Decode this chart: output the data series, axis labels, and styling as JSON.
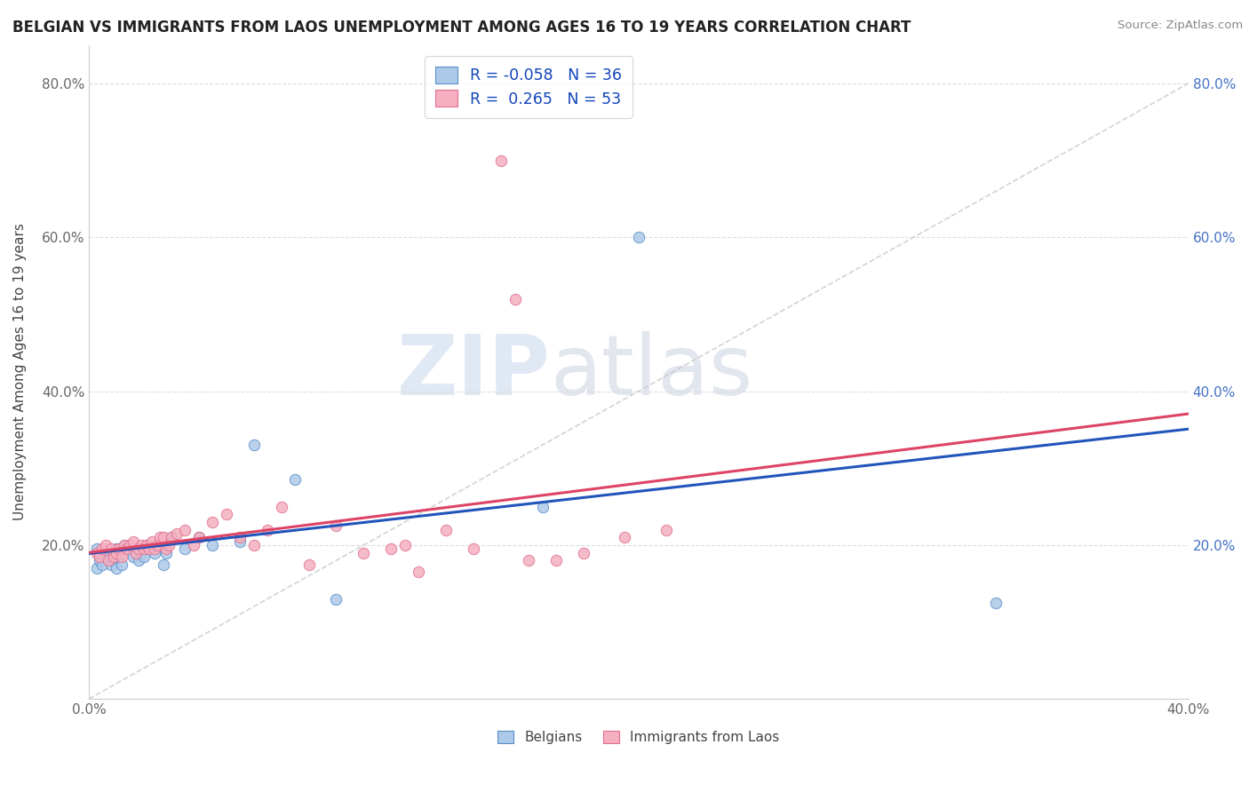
{
  "title": "BELGIAN VS IMMIGRANTS FROM LAOS UNEMPLOYMENT AMONG AGES 16 TO 19 YEARS CORRELATION CHART",
  "source": "Source: ZipAtlas.com",
  "ylabel": "Unemployment Among Ages 16 to 19 years",
  "xlim": [
    0.0,
    0.4
  ],
  "ylim": [
    0.0,
    0.85
  ],
  "x_ticks": [
    0.0,
    0.1,
    0.2,
    0.3,
    0.4
  ],
  "x_tick_labels": [
    "0.0%",
    "",
    "",
    "",
    "40.0%"
  ],
  "y_ticks": [
    0.0,
    0.2,
    0.4,
    0.6,
    0.8
  ],
  "y_tick_labels_left": [
    "",
    "20.0%",
    "40.0%",
    "60.0%",
    "80.0%"
  ],
  "y_tick_labels_right": [
    "",
    "20.0%",
    "40.0%",
    "60.0%",
    "80.0%"
  ],
  "belgian_fill": "#adc9e8",
  "belgian_edge": "#5b8fc9",
  "laos_fill": "#f5afc0",
  "laos_edge": "#e07090",
  "belgian_line_color": "#2255bb",
  "laos_line_color": "#dd4466",
  "dashed_line_color": "#c8c8c8",
  "watermark_zip": "ZIP",
  "watermark_atlas": "atlas",
  "watermark_zip_color": "#c8d8ee",
  "watermark_atlas_color": "#c0c8d8",
  "belgians_label": "Belgians",
  "laos_label": "Immigrants from Laos",
  "legend_r1_label": "R = ",
  "legend_r1_val": "-0.058",
  "legend_n1": "N = 36",
  "legend_r2_label": "R =  ",
  "legend_r2_val": "0.265",
  "legend_n2": "N = 53",
  "belgian_scatter_x": [
    0.003,
    0.003,
    0.004,
    0.005,
    0.006,
    0.007,
    0.008,
    0.009,
    0.01,
    0.01,
    0.011,
    0.012,
    0.013,
    0.013,
    0.015,
    0.016,
    0.018,
    0.019,
    0.02,
    0.021,
    0.022,
    0.024,
    0.025,
    0.027,
    0.028,
    0.03,
    0.035,
    0.04,
    0.045,
    0.055,
    0.06,
    0.075,
    0.09,
    0.165,
    0.2,
    0.33
  ],
  "belgian_scatter_y": [
    0.17,
    0.195,
    0.18,
    0.175,
    0.185,
    0.19,
    0.175,
    0.18,
    0.195,
    0.17,
    0.185,
    0.175,
    0.195,
    0.2,
    0.195,
    0.185,
    0.18,
    0.19,
    0.185,
    0.2,
    0.195,
    0.19,
    0.2,
    0.175,
    0.19,
    0.21,
    0.195,
    0.21,
    0.2,
    0.205,
    0.33,
    0.285,
    0.13,
    0.25,
    0.6,
    0.125
  ],
  "laos_scatter_x": [
    0.003,
    0.004,
    0.005,
    0.006,
    0.007,
    0.008,
    0.009,
    0.01,
    0.011,
    0.012,
    0.013,
    0.014,
    0.015,
    0.016,
    0.017,
    0.018,
    0.019,
    0.02,
    0.021,
    0.022,
    0.023,
    0.024,
    0.025,
    0.026,
    0.027,
    0.028,
    0.029,
    0.03,
    0.032,
    0.035,
    0.038,
    0.04,
    0.045,
    0.05,
    0.055,
    0.06,
    0.065,
    0.07,
    0.08,
    0.09,
    0.1,
    0.11,
    0.115,
    0.12,
    0.13,
    0.14,
    0.15,
    0.155,
    0.16,
    0.17,
    0.18,
    0.195,
    0.21
  ],
  "laos_scatter_y": [
    0.19,
    0.185,
    0.195,
    0.2,
    0.18,
    0.195,
    0.185,
    0.19,
    0.195,
    0.185,
    0.2,
    0.195,
    0.2,
    0.205,
    0.19,
    0.195,
    0.2,
    0.195,
    0.2,
    0.195,
    0.205,
    0.195,
    0.2,
    0.21,
    0.21,
    0.195,
    0.2,
    0.21,
    0.215,
    0.22,
    0.2,
    0.21,
    0.23,
    0.24,
    0.21,
    0.2,
    0.22,
    0.25,
    0.175,
    0.225,
    0.19,
    0.195,
    0.2,
    0.165,
    0.22,
    0.195,
    0.7,
    0.52,
    0.18,
    0.18,
    0.19,
    0.21,
    0.22
  ]
}
